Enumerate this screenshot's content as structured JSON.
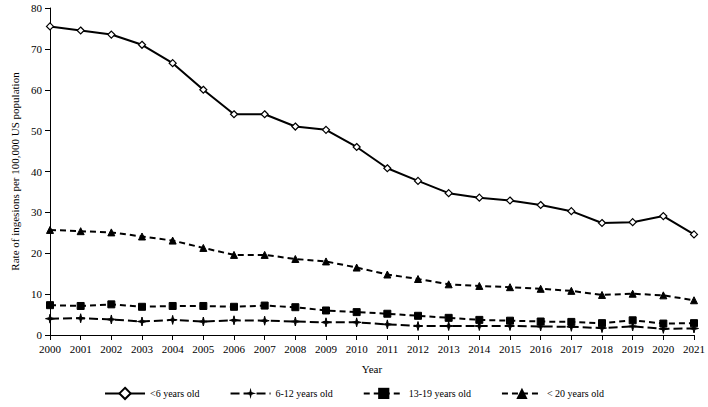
{
  "chart_data": {
    "type": "line",
    "x_label": "Year",
    "y_label": "Rate of ingesions per 100,000 US population",
    "categories": [
      "2000",
      "2001",
      "2002",
      "2003",
      "2004",
      "2005",
      "2006",
      "2007",
      "2008",
      "2009",
      "2010",
      "2011",
      "2012",
      "2013",
      "2014",
      "2015",
      "2016",
      "2017",
      "2018",
      "2019",
      "2020",
      "2021"
    ],
    "ylim": [
      0,
      80
    ],
    "yticks": [
      0,
      10,
      20,
      30,
      40,
      50,
      60,
      70,
      80
    ],
    "grid": false,
    "legend": "bottom",
    "series": [
      {
        "name": "<6 years old",
        "color": "#000000",
        "marker": "open_diamond",
        "line_style": "solid",
        "values": [
          75.5,
          74.5,
          73.5,
          71.0,
          66.5,
          60.0,
          54.0,
          54.0,
          51.0,
          50.2,
          46.0,
          40.8,
          37.7,
          34.7,
          33.6,
          32.9,
          31.8,
          30.3,
          27.4,
          27.6,
          29.1,
          24.6
        ]
      },
      {
        "name": "6-12 years old",
        "color": "#000000",
        "marker": "asterisk",
        "line_style": "longdash",
        "values": [
          4.0,
          4.1,
          3.8,
          3.3,
          3.7,
          3.3,
          3.6,
          3.5,
          3.3,
          3.1,
          3.1,
          2.6,
          2.2,
          2.2,
          2.2,
          2.2,
          2.1,
          2.0,
          1.7,
          2.1,
          1.5,
          1.6
        ]
      },
      {
        "name": "13-19 years old",
        "color": "#000000",
        "marker": "square",
        "line_style": "dashed",
        "values": [
          7.3,
          7.1,
          7.5,
          6.9,
          7.1,
          7.1,
          6.9,
          7.2,
          6.8,
          6.0,
          5.6,
          5.2,
          4.7,
          4.2,
          3.7,
          3.5,
          3.3,
          3.2,
          2.9,
          3.6,
          2.8,
          2.9
        ]
      },
      {
        "name": "< 20 years old",
        "color": "#000000",
        "marker": "triangle",
        "line_style": "dashed",
        "values": [
          25.7,
          25.4,
          25.1,
          24.1,
          23.1,
          21.3,
          19.6,
          19.6,
          18.6,
          18.0,
          16.5,
          14.8,
          13.7,
          12.4,
          12.0,
          11.7,
          11.3,
          10.8,
          9.8,
          10.1,
          9.7,
          8.5
        ]
      }
    ]
  }
}
